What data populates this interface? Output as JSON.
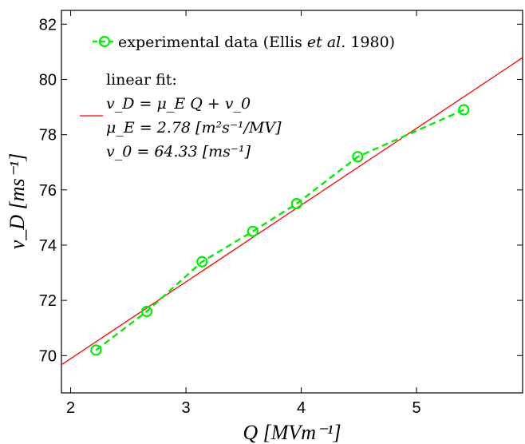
{
  "chart_data": {
    "type": "line",
    "title": "",
    "xlabel": "Q [MVm⁻¹]",
    "ylabel": "v_D [ms⁻¹]",
    "xlim": [
      1.92,
      5.92
    ],
    "ylim": [
      68.65,
      82.5
    ],
    "xticks": [
      2,
      3,
      4,
      5
    ],
    "yticks": [
      70,
      72,
      74,
      76,
      78,
      80,
      82
    ],
    "grid": false,
    "legend_position": "top-left",
    "series": [
      {
        "name": "experimental data (Ellis et al. 1980)",
        "style": "dashed-circle-markers",
        "color": "#00ee00",
        "x": [
          2.22,
          2.66,
          3.14,
          3.58,
          3.96,
          4.49,
          5.41
        ],
        "y": [
          70.2,
          71.6,
          73.4,
          74.5,
          75.5,
          77.2,
          78.9
        ]
      },
      {
        "name": "linear fit",
        "style": "solid",
        "color": "#ff0000",
        "slope": 2.78,
        "intercept": 64.33
      }
    ],
    "legend": {
      "experimental": "experimental data (Ellis ",
      "experimental_italic": "et al.",
      "experimental_year": " 1980)",
      "fit_title": "linear fit:",
      "fit_equation": "v_D = μ_E Q + v_0",
      "fit_mu": "μ_E = 2.78 [m²s⁻¹/MV]",
      "fit_v0": "v_0 = 64.33 [ms⁻¹]"
    }
  }
}
